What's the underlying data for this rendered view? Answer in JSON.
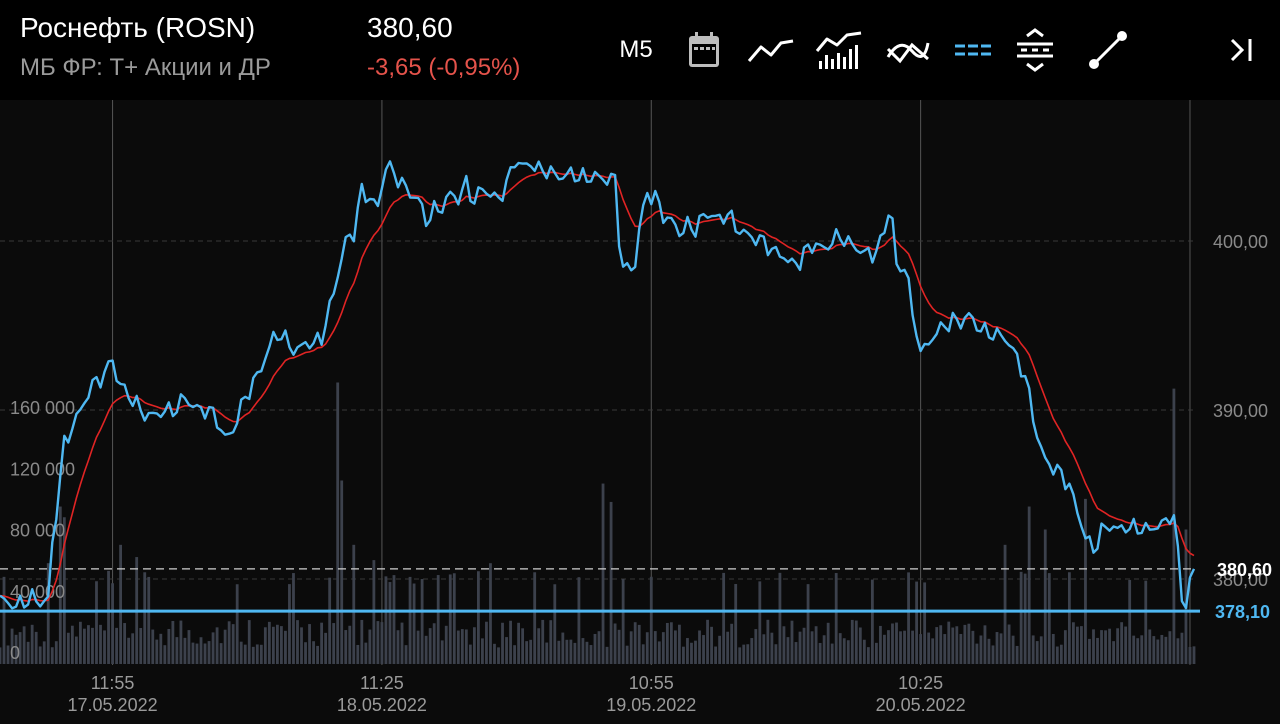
{
  "header": {
    "ticker": "Роснефть (ROSN)",
    "exchange": "МБ ФР: T+ Акции и ДР",
    "price": "380,60",
    "change": "-3,65 (-0,95%)",
    "timeframe": "M5"
  },
  "toolbar": {
    "icons": [
      "calendar-icon",
      "line-chart-icon",
      "volume-chart-icon",
      "indicators-icon",
      "dashed-lines-icon",
      "spread-icon",
      "trendline-icon",
      "scroll-to-end-icon"
    ]
  },
  "colors": {
    "price_line": "#4fb8f2",
    "ma_line": "#e02424",
    "negative": "#e5534b",
    "grid": "#3a3a3a",
    "volume_bar": "#3c414c"
  },
  "chart_data": {
    "type": "line",
    "price_axis": {
      "ylim": [
        376.0,
        409.5
      ],
      "ticks": [
        400,
        390,
        380
      ],
      "tick_labels": [
        "400,00",
        "390,00",
        "380,00"
      ]
    },
    "volume_axis": {
      "ylim": [
        0,
        200000
      ],
      "ticks": [
        0,
        40000,
        80000,
        120000,
        160000
      ],
      "tick_labels": [
        "0",
        "40 000",
        "80 000",
        "120 000",
        "160 000"
      ]
    },
    "x_ticks": [
      {
        "index": 28,
        "time": "11:55",
        "date": "17.05.2022"
      },
      {
        "index": 95,
        "time": "11:25",
        "date": "18.05.2022"
      },
      {
        "index": 162,
        "time": "10:55",
        "date": "19.05.2022"
      },
      {
        "index": 229,
        "time": "10:25",
        "date": "20.05.2022"
      },
      {
        "index": 296,
        "time": "",
        "date": ""
      }
    ],
    "current_price_label": "380,60",
    "current_price": 380.6,
    "level_label": "378,10",
    "level_price": 378.1,
    "price_anchors": [
      [
        0,
        378.8
      ],
      [
        4,
        378.4
      ],
      [
        8,
        378.9
      ],
      [
        10,
        378.6
      ],
      [
        12,
        378.8
      ],
      [
        13,
        382.0
      ],
      [
        14,
        384.0
      ],
      [
        16,
        388.0
      ],
      [
        18,
        389.0
      ],
      [
        20,
        390.0
      ],
      [
        22,
        391.0
      ],
      [
        24,
        391.8
      ],
      [
        26,
        392.0
      ],
      [
        28,
        393.2
      ],
      [
        29,
        391.8
      ],
      [
        31,
        391.2
      ],
      [
        33,
        390.6
      ],
      [
        35,
        390.0
      ],
      [
        37,
        389.6
      ],
      [
        39,
        389.8
      ],
      [
        41,
        389.9
      ],
      [
        44,
        390.1
      ],
      [
        46,
        390.8
      ],
      [
        48,
        390.2
      ],
      [
        50,
        390.0
      ],
      [
        52,
        390.0
      ],
      [
        54,
        389.4
      ],
      [
        56,
        388.3
      ],
      [
        58,
        388.8
      ],
      [
        60,
        390.2
      ],
      [
        62,
        391.2
      ],
      [
        64,
        392.0
      ],
      [
        66,
        393.1
      ],
      [
        68,
        394.3
      ],
      [
        70,
        394.5
      ],
      [
        72,
        393.8
      ],
      [
        74,
        393.5
      ],
      [
        76,
        394.0
      ],
      [
        78,
        393.9
      ],
      [
        80,
        394.3
      ],
      [
        82,
        396.0
      ],
      [
        84,
        398.0
      ],
      [
        86,
        400.0
      ],
      [
        88,
        400.5
      ],
      [
        90,
        403.0
      ],
      [
        92,
        402.5
      ],
      [
        94,
        402.0
      ],
      [
        96,
        404.5
      ],
      [
        98,
        404.0
      ],
      [
        100,
        403.4
      ],
      [
        102,
        402.8
      ],
      [
        104,
        402.5
      ],
      [
        106,
        401.2
      ],
      [
        108,
        401.8
      ],
      [
        110,
        402.0
      ],
      [
        112,
        402.8
      ],
      [
        114,
        402.5
      ],
      [
        116,
        403.4
      ],
      [
        118,
        402.3
      ],
      [
        120,
        403.2
      ],
      [
        122,
        402.7
      ],
      [
        124,
        402.5
      ],
      [
        126,
        403.3
      ],
      [
        128,
        404.8
      ],
      [
        130,
        404.4
      ],
      [
        132,
        404.6
      ],
      [
        134,
        404.2
      ],
      [
        136,
        404.2
      ],
      [
        138,
        403.9
      ],
      [
        140,
        403.8
      ],
      [
        142,
        404.0
      ],
      [
        144,
        403.8
      ],
      [
        146,
        403.7
      ],
      [
        148,
        403.9
      ],
      [
        150,
        403.6
      ],
      [
        152,
        403.8
      ],
      [
        153,
        403.5
      ],
      [
        154,
        400.2
      ],
      [
        155,
        398.5
      ],
      [
        156,
        398.3
      ],
      [
        157,
        398.4
      ],
      [
        158,
        398.6
      ],
      [
        159,
        400.8
      ],
      [
        161,
        402.8
      ],
      [
        163,
        402.6
      ],
      [
        165,
        401.5
      ],
      [
        167,
        401.2
      ],
      [
        169,
        400.5
      ],
      [
        171,
        400.9
      ],
      [
        173,
        400.7
      ],
      [
        175,
        401.5
      ],
      [
        177,
        401.6
      ],
      [
        179,
        401.2
      ],
      [
        181,
        401.7
      ],
      [
        183,
        400.8
      ],
      [
        185,
        400.5
      ],
      [
        187,
        400.2
      ],
      [
        189,
        400.1
      ],
      [
        191,
        399.7
      ],
      [
        193,
        399.3
      ],
      [
        195,
        399.1
      ],
      [
        197,
        398.6
      ],
      [
        199,
        398.8
      ],
      [
        201,
        399.6
      ],
      [
        203,
        399.8
      ],
      [
        205,
        399.5
      ],
      [
        207,
        400.0
      ],
      [
        209,
        400.3
      ],
      [
        211,
        399.9
      ],
      [
        213,
        399.6
      ],
      [
        215,
        399.3
      ],
      [
        217,
        399.2
      ],
      [
        219,
        399.8
      ],
      [
        221,
        401.7
      ],
      [
        222,
        401.2
      ],
      [
        223,
        398.5
      ],
      [
        224,
        398.2
      ],
      [
        225,
        398.7
      ],
      [
        226,
        397.5
      ],
      [
        227,
        395.3
      ],
      [
        228,
        394.9
      ],
      [
        229,
        393.4
      ],
      [
        230,
        393.6
      ],
      [
        231,
        394.0
      ],
      [
        233,
        394.6
      ],
      [
        235,
        395.0
      ],
      [
        237,
        395.3
      ],
      [
        239,
        395.2
      ],
      [
        241,
        395.6
      ],
      [
        243,
        395.0
      ],
      [
        245,
        394.6
      ],
      [
        247,
        394.5
      ],
      [
        249,
        394.4
      ],
      [
        251,
        394.0
      ],
      [
        253,
        393.0
      ],
      [
        255,
        392.0
      ],
      [
        256,
        390.8
      ],
      [
        257,
        389.6
      ],
      [
        258,
        388.5
      ],
      [
        259,
        387.7
      ],
      [
        260,
        387.0
      ],
      [
        262,
        386.6
      ],
      [
        264,
        386.2
      ],
      [
        266,
        385.5
      ],
      [
        268,
        384.0
      ],
      [
        270,
        382.5
      ],
      [
        272,
        381.7
      ],
      [
        274,
        382.8
      ],
      [
        276,
        383.2
      ],
      [
        278,
        382.9
      ],
      [
        280,
        383.1
      ],
      [
        282,
        383.0
      ],
      [
        284,
        383.0
      ],
      [
        286,
        382.9
      ],
      [
        288,
        383.2
      ],
      [
        290,
        383.3
      ],
      [
        291,
        383.8
      ],
      [
        292,
        383.7
      ],
      [
        293,
        381.5
      ],
      [
        294,
        379.0
      ],
      [
        295,
        378.4
      ],
      [
        296,
        380.0
      ],
      [
        297,
        380.6
      ]
    ],
    "volume_spikes": [
      [
        12,
        58000
      ],
      [
        15,
        95000
      ],
      [
        16,
        88000
      ],
      [
        30,
        70000
      ],
      [
        34,
        62000
      ],
      [
        84,
        176000
      ],
      [
        85,
        112000
      ],
      [
        88,
        70000
      ],
      [
        93,
        60000
      ],
      [
        122,
        58000
      ],
      [
        150,
        110000
      ],
      [
        152,
        98000
      ],
      [
        226,
        52000
      ],
      [
        228,
        46000
      ],
      [
        250,
        70000
      ],
      [
        256,
        95000
      ],
      [
        260,
        80000
      ],
      [
        270,
        100000
      ],
      [
        292,
        172000
      ],
      [
        295,
        80000
      ]
    ]
  }
}
